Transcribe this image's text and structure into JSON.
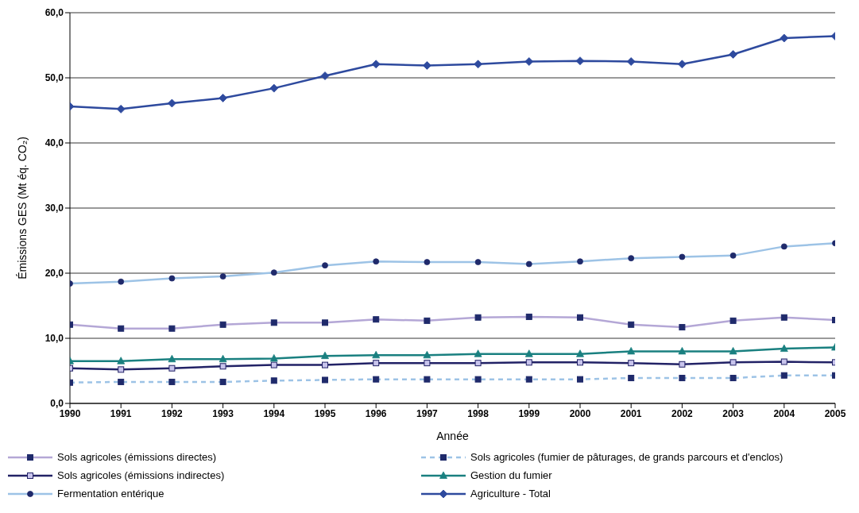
{
  "chart_data": {
    "type": "line",
    "xlabel": "Année",
    "ylabel": "Émissions GES (Mt éq. CO₂)",
    "categories": [
      "1990",
      "1991",
      "1992",
      "1993",
      "1994",
      "1995",
      "1996",
      "1997",
      "1998",
      "1999",
      "2000",
      "2001",
      "2002",
      "2003",
      "2004",
      "2005"
    ],
    "ylim": [
      0,
      60
    ],
    "yticks": [
      {
        "value": 0,
        "label": "0,0"
      },
      {
        "value": 10,
        "label": "10,0"
      },
      {
        "value": 20,
        "label": "20,0"
      },
      {
        "value": 30,
        "label": "30,0"
      },
      {
        "value": 40,
        "label": "40,0"
      },
      {
        "value": 50,
        "label": "50,0"
      },
      {
        "value": 60,
        "label": "60,0"
      }
    ],
    "grid": "y",
    "legend": "bottom",
    "series": [
      {
        "name": "Sols agricoles (émissions directes)",
        "color": "#b4a7d6",
        "marker": "square",
        "line_style": "solid",
        "values": [
          12.1,
          11.5,
          11.5,
          12.1,
          12.4,
          12.4,
          12.9,
          12.7,
          13.2,
          13.3,
          13.2,
          12.1,
          11.7,
          12.7,
          13.2,
          12.8
        ]
      },
      {
        "name": "Sols agricoles (fumier de pâturages, de grands parcours et d'enclos)",
        "color": "#9dc3e6",
        "marker": "square",
        "line_style": "dashed",
        "values": [
          3.2,
          3.3,
          3.3,
          3.3,
          3.5,
          3.6,
          3.7,
          3.7,
          3.7,
          3.7,
          3.7,
          3.9,
          3.9,
          3.9,
          4.3,
          4.3
        ]
      },
      {
        "name": "Sols agricoles (émissions indirectes)",
        "color": "#222266",
        "marker": "square",
        "line_style": "solid",
        "values": [
          5.4,
          5.2,
          5.4,
          5.7,
          5.9,
          5.9,
          6.2,
          6.2,
          6.2,
          6.3,
          6.3,
          6.2,
          6.0,
          6.3,
          6.4,
          6.3
        ]
      },
      {
        "name": "Gestion du fumier",
        "color": "#1a8080",
        "marker": "triangle",
        "line_style": "solid",
        "values": [
          6.5,
          6.5,
          6.8,
          6.8,
          6.9,
          7.3,
          7.4,
          7.4,
          7.6,
          7.6,
          7.6,
          8.0,
          8.0,
          8.0,
          8.4,
          8.6
        ]
      },
      {
        "name": "Fermentation entérique",
        "color": "#9dc3e6",
        "marker": "circle",
        "line_style": "solid",
        "values": [
          18.4,
          18.7,
          19.2,
          19.5,
          20.1,
          21.2,
          21.8,
          21.7,
          21.7,
          21.4,
          21.8,
          22.3,
          22.5,
          22.7,
          24.1,
          24.6
        ]
      },
      {
        "name": "Agriculture - Total",
        "color": "#2e4a9e",
        "marker": "diamond",
        "line_style": "solid",
        "values": [
          45.6,
          45.2,
          46.1,
          46.9,
          48.4,
          50.3,
          52.1,
          51.9,
          52.1,
          52.5,
          52.6,
          52.5,
          52.1,
          53.6,
          56.1,
          56.4
        ]
      }
    ]
  }
}
